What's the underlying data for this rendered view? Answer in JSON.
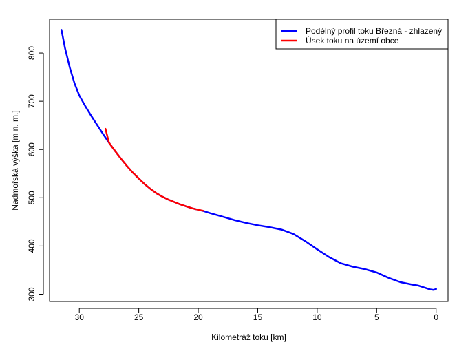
{
  "chart_data": {
    "type": "line",
    "title": "",
    "xlabel": "Kilometráž toku [km]",
    "ylabel": "Nadmořská výška [m n. m.]",
    "xlim": [
      32.5,
      -1.0
    ],
    "ylim": [
      285,
      870
    ],
    "x_ticks": [
      30,
      25,
      20,
      15,
      10,
      5,
      0
    ],
    "y_ticks": [
      300,
      400,
      500,
      600,
      700,
      800
    ],
    "grid": false,
    "legend_position": "top-right",
    "series": [
      {
        "name": "Podélný profil toku Březná - zhlazený",
        "color": "#0000ff",
        "x": [
          31.5,
          31.2,
          30.8,
          30.4,
          30.0,
          29.5,
          29.0,
          28.5,
          28.0,
          27.5,
          27.0,
          26.5,
          26.0,
          25.5,
          25.0,
          24.5,
          24.0,
          23.5,
          23.0,
          22.5,
          22.0,
          21.5,
          21.0,
          20.5,
          20.0,
          19.5,
          19.0,
          18.0,
          17.0,
          16.0,
          15.0,
          14.0,
          13.0,
          12.0,
          11.0,
          10.0,
          9.0,
          8.0,
          7.0,
          6.0,
          5.0,
          4.0,
          3.0,
          2.0,
          1.5,
          1.0,
          0.5,
          0.2,
          0.0
        ],
        "y": [
          848,
          810,
          770,
          737,
          712,
          690,
          670,
          651,
          632,
          614,
          597,
          581,
          566,
          552,
          540,
          528,
          518,
          509,
          502,
          496,
          491,
          486,
          482,
          478,
          475,
          472,
          468,
          461,
          454,
          448,
          443,
          439,
          434,
          425,
          410,
          393,
          377,
          364,
          357,
          352,
          345,
          334,
          325,
          320,
          318,
          314,
          310,
          309,
          311
        ]
      },
      {
        "name": "Úsek toku na území obce",
        "color": "#ff0000",
        "x": [
          27.8,
          27.5,
          27.0,
          26.5,
          26.0,
          25.5,
          25.0,
          24.5,
          24.0,
          23.5,
          23.0,
          22.5,
          22.0,
          21.5,
          21.0,
          20.5,
          20.0,
          19.6
        ],
        "y": [
          643,
          614,
          597,
          581,
          566,
          552,
          540,
          528,
          518,
          509,
          502,
          496,
          491,
          486,
          482,
          478,
          475,
          473
        ]
      }
    ]
  }
}
